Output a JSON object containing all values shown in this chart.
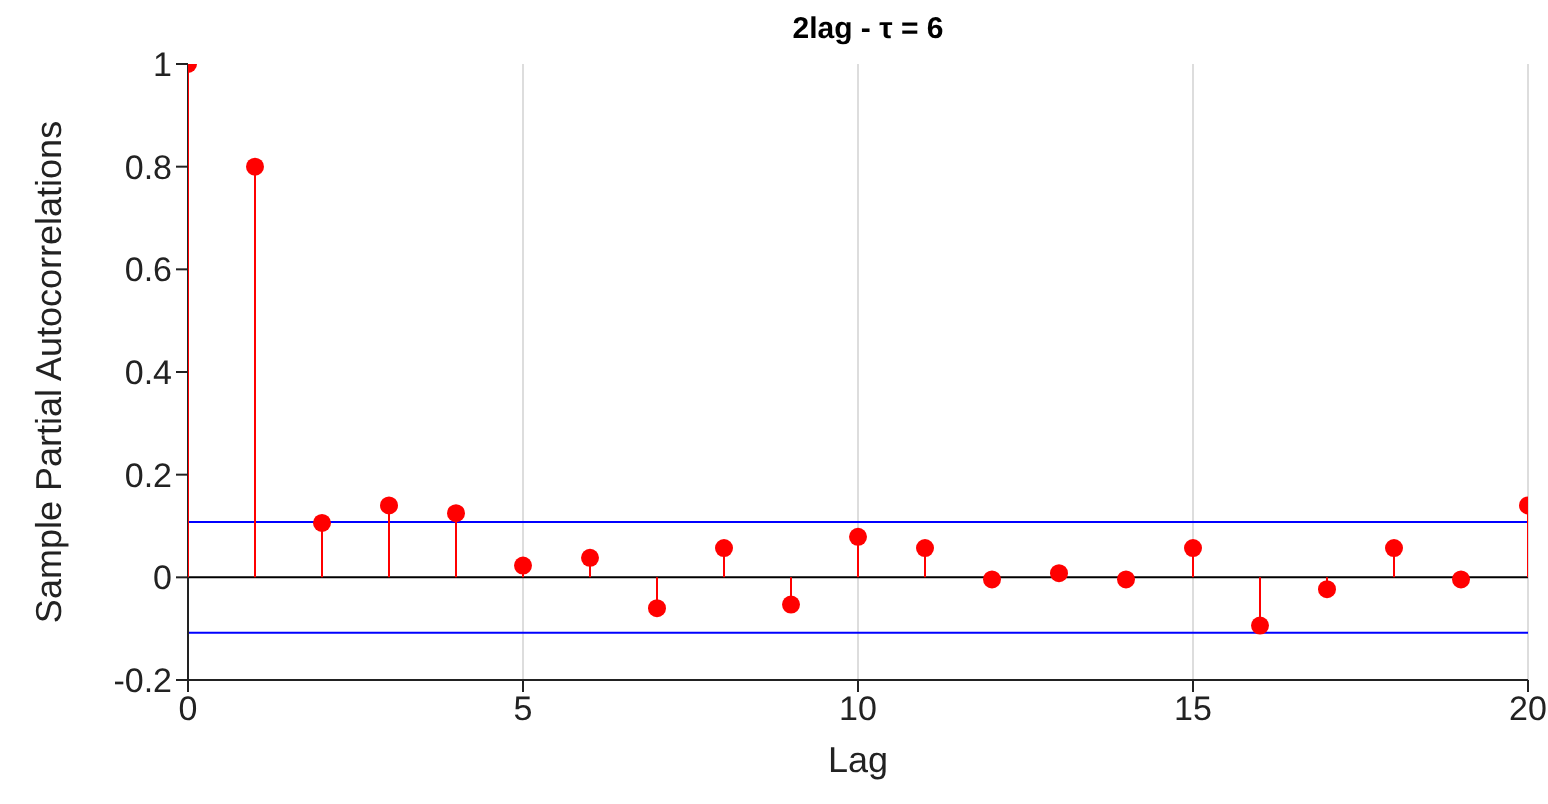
{
  "chart_data": {
    "type": "lollipop",
    "title": "2lag - τ = 6",
    "xlabel": "Lag",
    "ylabel": "Sample Partial Autocorrelations",
    "x": [
      0,
      1,
      2,
      3,
      4,
      5,
      6,
      7,
      8,
      9,
      10,
      11,
      12,
      13,
      14,
      15,
      16,
      17,
      18,
      19,
      20
    ],
    "values": [
      1,
      0.8,
      0.106,
      0.14,
      0.125,
      0.023,
      0.038,
      -0.06,
      0.057,
      -0.053,
      0.079,
      0.057,
      -0.004,
      0.008,
      -0.004,
      0.057,
      -0.094,
      -0.023,
      0.057,
      -0.004,
      0.14
    ],
    "color": "#ff0000",
    "marker": "circle",
    "xlim": [
      0,
      20
    ],
    "xticks": [
      0,
      5,
      10,
      15,
      20
    ],
    "ylim": [
      -0.2,
      1
    ],
    "yticks": [
      -0.2,
      0,
      0.2,
      0.4,
      0.6,
      0.8,
      1
    ],
    "grid": "x",
    "ref_lines": [
      {
        "axis": "y",
        "value": 0,
        "color": "#000000"
      },
      {
        "axis": "y",
        "value": 0.108,
        "color": "#0000ff"
      },
      {
        "axis": "y",
        "value": -0.108,
        "color": "#0000ff"
      }
    ]
  }
}
